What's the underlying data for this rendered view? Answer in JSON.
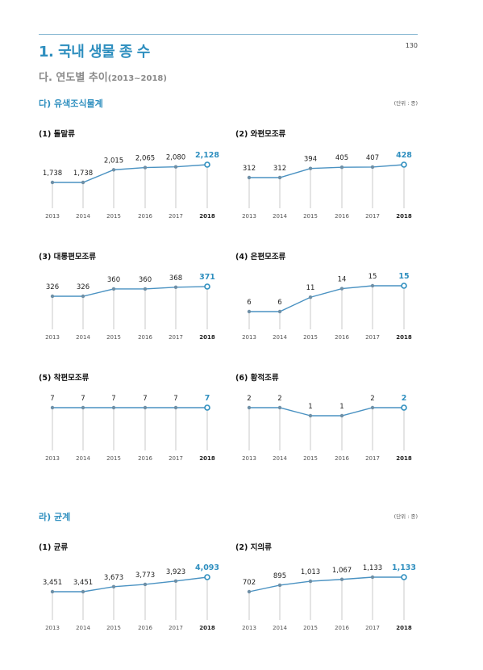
{
  "page": {
    "title": "1. 국내 생물 종 수",
    "page_number": "130",
    "subtitle": "다. 연도별 추이",
    "subtitle_range": "(2013~2018)"
  },
  "sections": [
    {
      "title": "다) 유색조식물계",
      "unit": "(단위 : 종)"
    },
    {
      "title": "라) 균계",
      "unit": "(단위 : 종)"
    }
  ],
  "colors": {
    "accent": "#2f8fbf",
    "line": "#4a92c2",
    "stem": "#c8c8c8",
    "point": "#6e8fa6"
  },
  "chart_data": [
    {
      "type": "line",
      "title": "(1) 돌말류",
      "categories": [
        "2013",
        "2014",
        "2015",
        "2016",
        "2017",
        "2018"
      ],
      "values": [
        1738,
        1738,
        2015,
        2065,
        2080,
        2128
      ],
      "labels": [
        "1,738",
        "1,738",
        "2,015",
        "2,065",
        "2,080",
        "2,128"
      ]
    },
    {
      "type": "line",
      "title": "(2) 와편모조류",
      "categories": [
        "2013",
        "2014",
        "2015",
        "2016",
        "2017",
        "2018"
      ],
      "values": [
        312,
        312,
        394,
        405,
        407,
        428
      ],
      "labels": [
        "312",
        "312",
        "394",
        "405",
        "407",
        "428"
      ]
    },
    {
      "type": "line",
      "title": "(3) 대롱편모조류",
      "categories": [
        "2013",
        "2014",
        "2015",
        "2016",
        "2017",
        "2018"
      ],
      "values": [
        326,
        326,
        360,
        360,
        368,
        371
      ],
      "labels": [
        "326",
        "326",
        "360",
        "360",
        "368",
        "371"
      ]
    },
    {
      "type": "line",
      "title": "(4) 은편모조류",
      "categories": [
        "2013",
        "2014",
        "2015",
        "2016",
        "2017",
        "2018"
      ],
      "values": [
        6,
        6,
        11,
        14,
        15,
        15
      ],
      "labels": [
        "6",
        "6",
        "11",
        "14",
        "15",
        "15"
      ]
    },
    {
      "type": "line",
      "title": "(5) 착편모조류",
      "categories": [
        "2013",
        "2014",
        "2015",
        "2016",
        "2017",
        "2018"
      ],
      "values": [
        7,
        7,
        7,
        7,
        7,
        7
      ],
      "labels": [
        "7",
        "7",
        "7",
        "7",
        "7",
        "7"
      ]
    },
    {
      "type": "line",
      "title": "(6) 황적조류",
      "categories": [
        "2013",
        "2014",
        "2015",
        "2016",
        "2017",
        "2018"
      ],
      "values": [
        2,
        2,
        1,
        1,
        2,
        2
      ],
      "labels": [
        "2",
        "2",
        "1",
        "1",
        "2",
        "2"
      ]
    },
    {
      "type": "line",
      "title": "(1) 균류",
      "categories": [
        "2013",
        "2014",
        "2015",
        "2016",
        "2017",
        "2018"
      ],
      "values": [
        3451,
        3451,
        3673,
        3773,
        3923,
        4093
      ],
      "labels": [
        "3,451",
        "3,451",
        "3,673",
        "3,773",
        "3,923",
        "4,093"
      ]
    },
    {
      "type": "line",
      "title": "(2) 지의류",
      "categories": [
        "2013",
        "2014",
        "2015",
        "2016",
        "2017",
        "2018"
      ],
      "values": [
        702,
        895,
        1013,
        1067,
        1133,
        1133
      ],
      "labels": [
        "702",
        "895",
        "1,013",
        "1,067",
        "1,133",
        "1,133"
      ]
    }
  ]
}
